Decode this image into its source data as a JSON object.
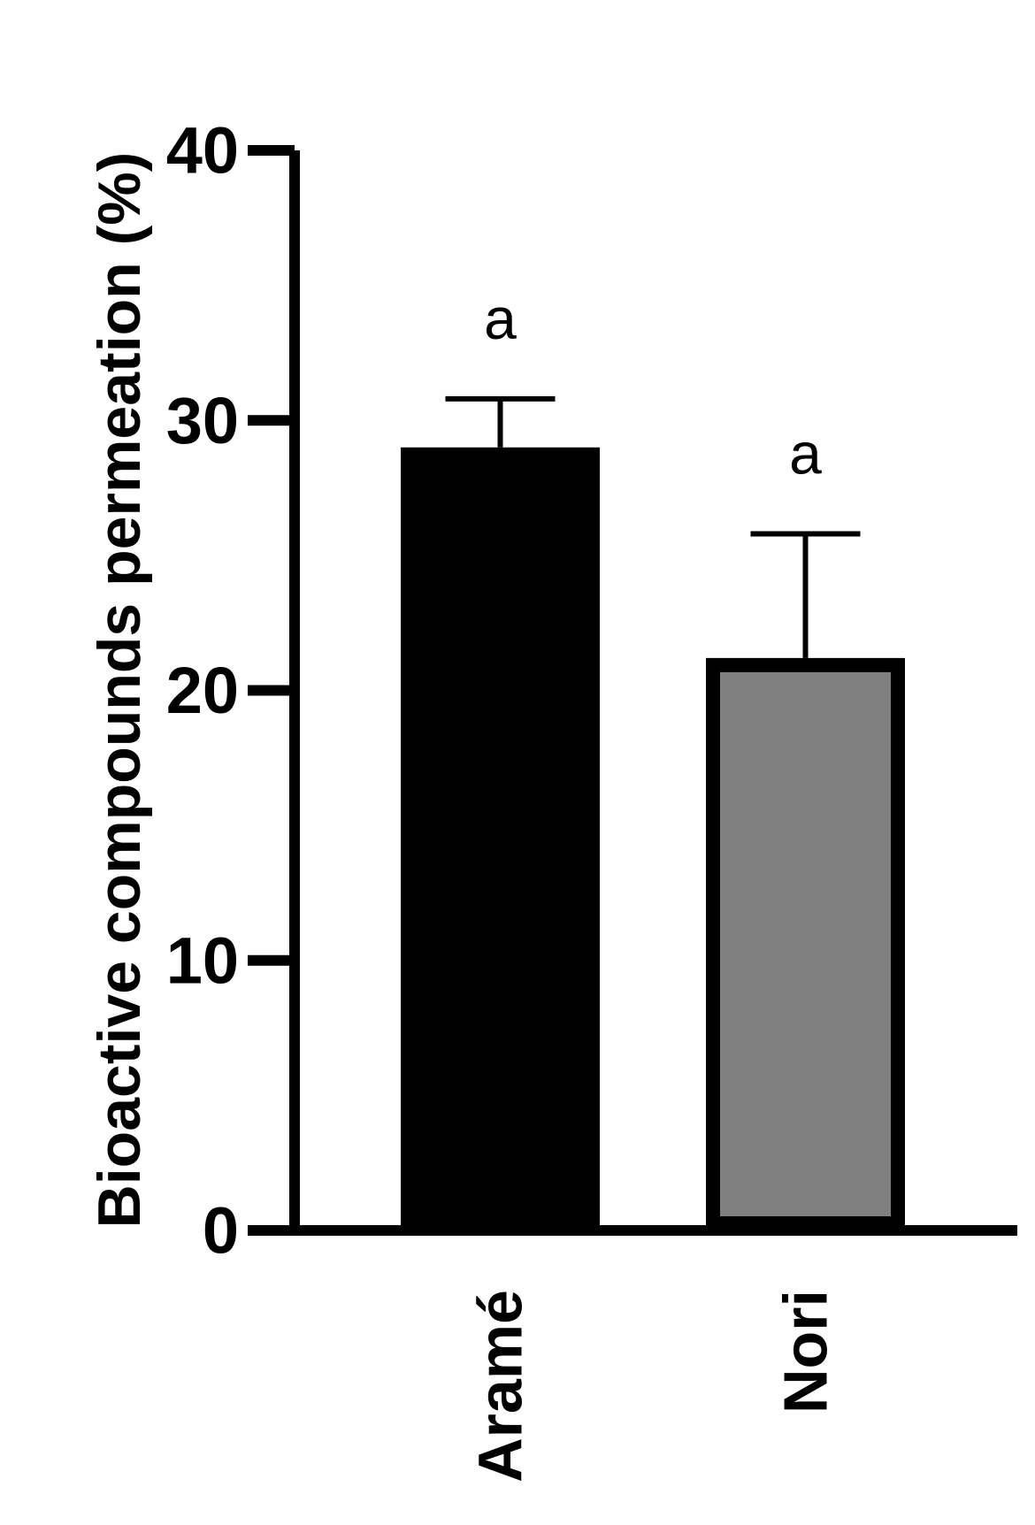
{
  "chart_data": {
    "type": "bar",
    "title": "",
    "xlabel": "",
    "ylabel": "Bioactive compounds permeation (%)",
    "ylim": [
      0,
      40
    ],
    "yticks": [
      0,
      10,
      20,
      30,
      40
    ],
    "categories": [
      "Aramé",
      "Nori"
    ],
    "values": [
      29.0,
      21.2
    ],
    "errors": [
      1.8,
      4.6
    ],
    "annotations": [
      "a",
      "a"
    ],
    "colors": [
      "#000000",
      "#808080"
    ],
    "edge_color": "#000000",
    "grid": false,
    "legend": "none"
  }
}
